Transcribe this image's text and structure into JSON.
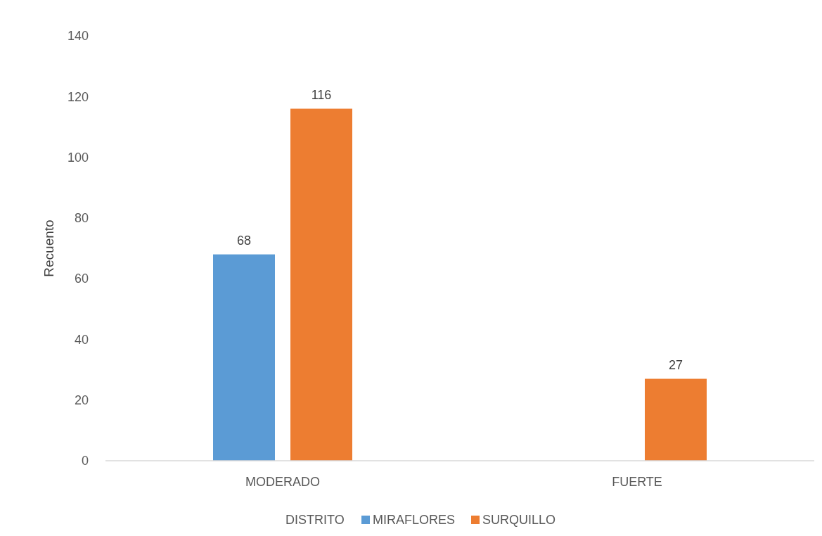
{
  "chart_data": {
    "type": "bar",
    "ylabel": "Recuento",
    "legend_title": "DISTRITO",
    "categories": [
      "MODERADO",
      "FUERTE"
    ],
    "series": [
      {
        "name": "MIRAFLORES",
        "color": "#5b9bd5",
        "values": [
          68,
          null
        ]
      },
      {
        "name": "SURQUILLO",
        "color": "#ed7d31",
        "values": [
          116,
          27
        ]
      }
    ],
    "ylim": [
      0,
      140
    ],
    "yticks": [
      0,
      20,
      40,
      60,
      80,
      100,
      120,
      140
    ],
    "grid": false,
    "legend": "bottom",
    "data_labels": true
  }
}
